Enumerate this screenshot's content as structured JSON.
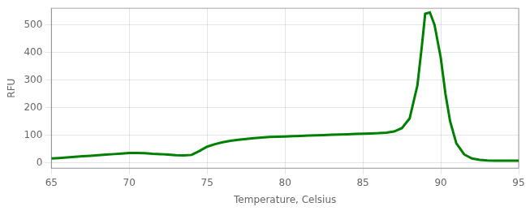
{
  "chart_data": {
    "type": "line",
    "xlabel": "Temperature, Celsius",
    "ylabel": "RFU",
    "x": [
      65.0,
      65.5,
      66.0,
      66.5,
      67.0,
      67.5,
      68.0,
      68.5,
      69.0,
      69.5,
      70.0,
      70.5,
      71.0,
      71.5,
      72.0,
      72.5,
      73.0,
      73.5,
      74.0,
      74.5,
      75.0,
      75.5,
      76.0,
      76.5,
      77.0,
      77.5,
      78.0,
      78.5,
      79.0,
      79.5,
      80.0,
      80.5,
      81.0,
      81.5,
      82.0,
      82.5,
      83.0,
      83.5,
      84.0,
      84.5,
      85.0,
      85.5,
      86.0,
      86.5,
      87.0,
      87.5,
      88.0,
      88.5,
      88.8,
      89.0,
      89.3,
      89.6,
      90.0,
      90.3,
      90.6,
      91.0,
      91.5,
      92.0,
      92.5,
      93.0,
      93.5,
      94.0,
      94.5,
      95.0
    ],
    "values": [
      15,
      17,
      19,
      21,
      23,
      25,
      27,
      29,
      31,
      33,
      35,
      35,
      34,
      32,
      31,
      29,
      27,
      26,
      28,
      42,
      58,
      67,
      74,
      79,
      83,
      86,
      89,
      91,
      93,
      94,
      95,
      96,
      97,
      98,
      99,
      100,
      101,
      102,
      103,
      104,
      105,
      106,
      107,
      109,
      113,
      125,
      160,
      280,
      430,
      540,
      545,
      500,
      380,
      250,
      150,
      70,
      30,
      15,
      10,
      8,
      7,
      7,
      7,
      7
    ],
    "color": "#008000",
    "xlim": [
      65,
      95
    ],
    "ylim": [
      -20,
      560
    ],
    "xticks": [
      65,
      70,
      75,
      80,
      85,
      90,
      95
    ],
    "yticks": [
      0,
      100,
      200,
      300,
      400,
      500
    ],
    "grid": true
  }
}
